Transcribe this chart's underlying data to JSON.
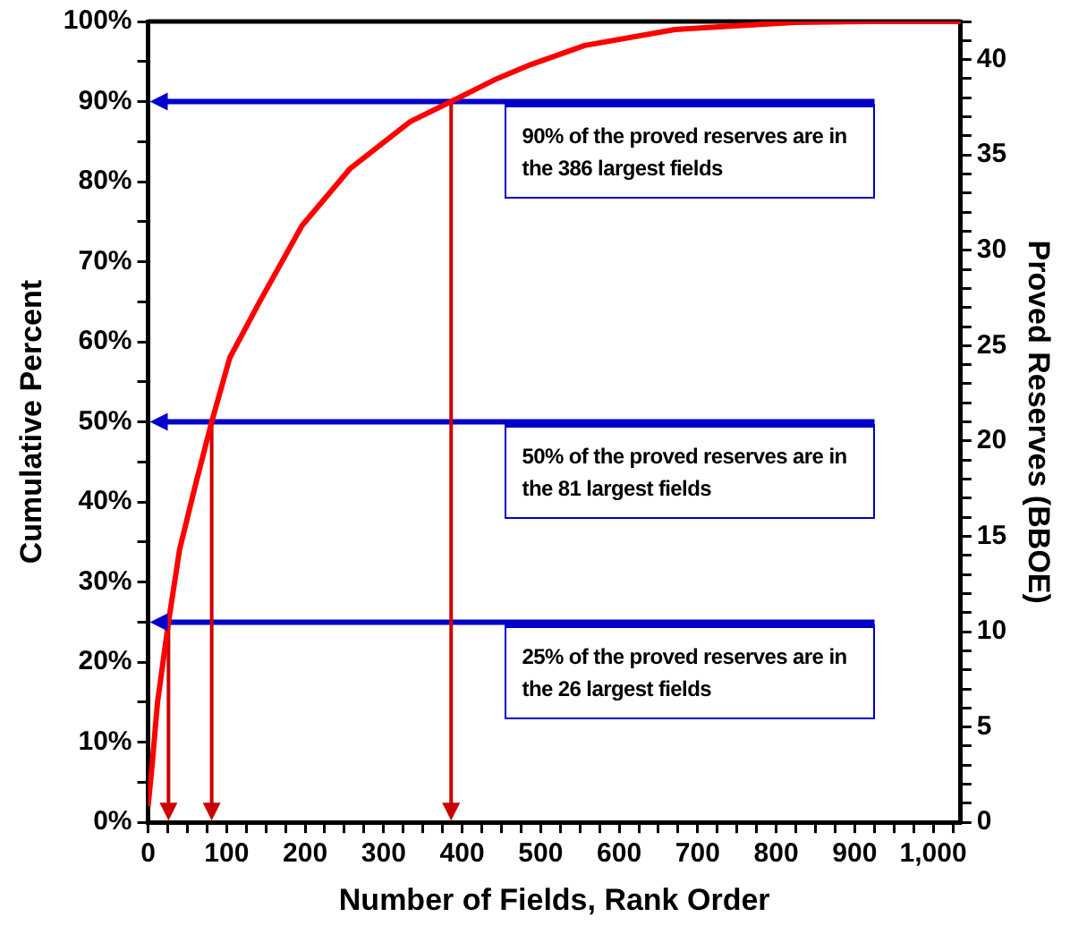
{
  "chart_data": {
    "type": "line",
    "xlabel": "Number of Fields, Rank Order",
    "ylabel": "Cumulative Percent",
    "y2label": "Proved Reserves (BBOE)",
    "x": [
      0,
      5,
      12,
      26,
      40,
      60,
      81,
      104,
      142,
      196,
      257,
      334,
      386,
      441,
      487,
      556,
      671,
      824,
      917,
      1035
    ],
    "series": [
      {
        "color": "#ff0000",
        "values": [
          2,
          7,
          15,
          25,
          34,
          42,
          50,
          58,
          65,
          74.5,
          81.6,
          87.5,
          90,
          92.7,
          94.6,
          97,
          99,
          99.9,
          100,
          100
        ]
      }
    ],
    "xlim": [
      0,
      1035
    ],
    "ylim": [
      0,
      100
    ],
    "y2lim": [
      0,
      42
    ],
    "xticks": [
      0,
      {
        "value": 25,
        "label": null
      },
      {
        "value": 50,
        "label": null
      },
      {
        "value": 75,
        "label": null
      },
      100,
      {
        "value": 125,
        "label": null
      },
      {
        "value": 150,
        "label": null
      },
      {
        "value": 175,
        "label": null
      },
      200,
      {
        "value": 225,
        "label": null
      },
      {
        "value": 250,
        "label": null
      },
      {
        "value": 275,
        "label": null
      },
      300,
      {
        "value": 325,
        "label": null
      },
      {
        "value": 350,
        "label": null
      },
      {
        "value": 375,
        "label": null
      },
      400,
      {
        "value": 425,
        "label": null
      },
      {
        "value": 450,
        "label": null
      },
      {
        "value": 475,
        "label": null
      },
      500,
      {
        "value": 525,
        "label": null
      },
      {
        "value": 550,
        "label": null
      },
      {
        "value": 575,
        "label": null
      },
      600,
      {
        "value": 625,
        "label": null
      },
      {
        "value": 650,
        "label": null
      },
      {
        "value": 675,
        "label": null
      },
      700,
      {
        "value": 725,
        "label": null
      },
      {
        "value": 750,
        "label": null
      },
      {
        "value": 775,
        "label": null
      },
      800,
      {
        "value": 825,
        "label": null
      },
      {
        "value": 850,
        "label": null
      },
      {
        "value": 875,
        "label": null
      },
      900,
      {
        "value": 925,
        "label": null
      },
      {
        "value": 950,
        "label": null
      },
      {
        "value": 975,
        "label": null
      },
      {
        "value": 1000,
        "label": "1,000"
      },
      {
        "value": 1025,
        "label": null
      }
    ],
    "yticks": [
      {
        "value": 0,
        "label": "0%"
      },
      {
        "value": 5,
        "label": null
      },
      {
        "value": 10,
        "label": "10%"
      },
      {
        "value": 15,
        "label": null
      },
      {
        "value": 20,
        "label": "20%"
      },
      {
        "value": 25,
        "label": null
      },
      {
        "value": 30,
        "label": "30%"
      },
      {
        "value": 35,
        "label": null
      },
      {
        "value": 40,
        "label": "40%"
      },
      {
        "value": 45,
        "label": null
      },
      {
        "value": 50,
        "label": "50%"
      },
      {
        "value": 55,
        "label": null
      },
      {
        "value": 60,
        "label": "60%"
      },
      {
        "value": 65,
        "label": null
      },
      {
        "value": 70,
        "label": "70%"
      },
      {
        "value": 75,
        "label": null
      },
      {
        "value": 80,
        "label": "80%"
      },
      {
        "value": 85,
        "label": null
      },
      {
        "value": 90,
        "label": "90%"
      },
      {
        "value": 95,
        "label": null
      },
      {
        "value": 100,
        "label": "100%"
      }
    ],
    "y2ticks": [
      0,
      {
        "value": 1,
        "label": null
      },
      {
        "value": 2,
        "label": null
      },
      {
        "value": 3,
        "label": null
      },
      {
        "value": 4,
        "label": null
      },
      5,
      {
        "value": 6,
        "label": null
      },
      {
        "value": 7,
        "label": null
      },
      {
        "value": 8,
        "label": null
      },
      {
        "value": 9,
        "label": null
      },
      10,
      {
        "value": 11,
        "label": null
      },
      {
        "value": 12,
        "label": null
      },
      {
        "value": 13,
        "label": null
      },
      {
        "value": 14,
        "label": null
      },
      15,
      {
        "value": 16,
        "label": null
      },
      {
        "value": 17,
        "label": null
      },
      {
        "value": 18,
        "label": null
      },
      {
        "value": 19,
        "label": null
      },
      20,
      {
        "value": 21,
        "label": null
      },
      {
        "value": 22,
        "label": null
      },
      {
        "value": 23,
        "label": null
      },
      {
        "value": 24,
        "label": null
      },
      25,
      {
        "value": 26,
        "label": null
      },
      {
        "value": 27,
        "label": null
      },
      {
        "value": 28,
        "label": null
      },
      {
        "value": 29,
        "label": null
      },
      30,
      {
        "value": 31,
        "label": null
      },
      {
        "value": 32,
        "label": null
      },
      {
        "value": 33,
        "label": null
      },
      {
        "value": 34,
        "label": null
      },
      35,
      {
        "value": 36,
        "label": null
      },
      {
        "value": 37,
        "label": null
      },
      {
        "value": 38,
        "label": null
      },
      {
        "value": 39,
        "label": null
      },
      40,
      {
        "value": 41,
        "label": null
      },
      {
        "value": 42,
        "label": null
      }
    ],
    "ref_lines": [
      {
        "axis": "y",
        "value": 90,
        "label": "90% of the proved reserves are in the 386 largest fields",
        "color": "#0000cc"
      },
      {
        "axis": "y",
        "value": 50,
        "label": "50% of the proved reserves are in the 81 largest fields",
        "color": "#0000cc"
      },
      {
        "axis": "y",
        "value": 25,
        "label": "25% of the proved reserves are in the 26 largest fields",
        "color": "#0000cc"
      },
      {
        "axis": "x",
        "value": 386,
        "color": "#cc0000"
      },
      {
        "axis": "x",
        "value": 81,
        "color": "#cc0000"
      },
      {
        "axis": "x",
        "value": 26,
        "color": "#cc0000"
      }
    ],
    "grid": false,
    "legend": false,
    "marker": "none",
    "line_style": "solid"
  }
}
